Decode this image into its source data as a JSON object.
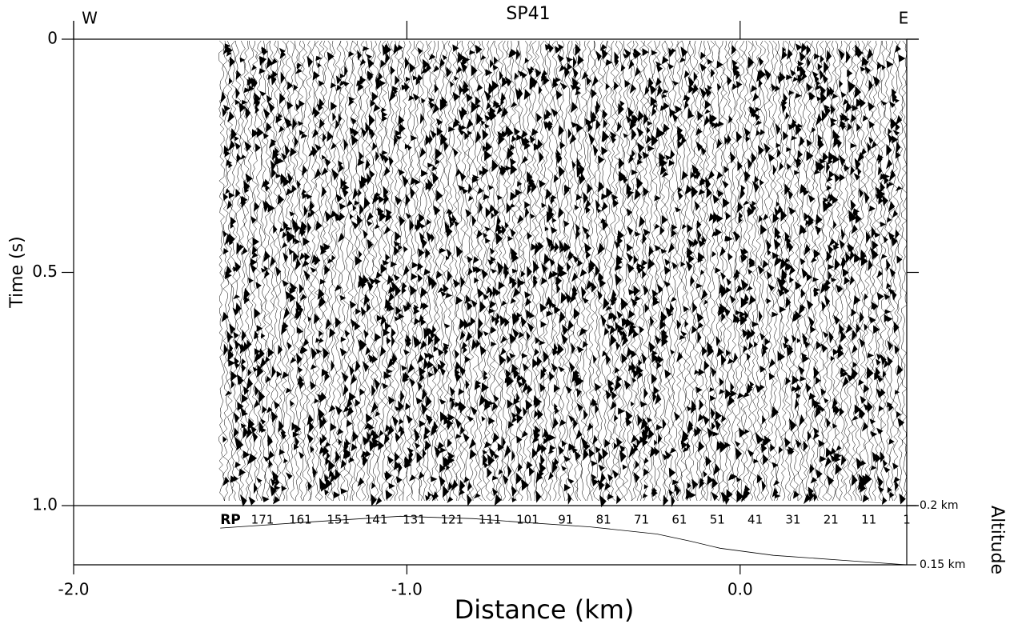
{
  "chart_data": {
    "type": "seismic-section",
    "title": "SP41",
    "x_label": "Distance (km)",
    "y_label": "Time (s)",
    "y2_label": "Altitude",
    "left_label": "W",
    "right_label": "E",
    "rp_label": "RP",
    "rp_numbers": [
      171,
      161,
      151,
      141,
      131,
      121,
      111,
      101,
      91,
      81,
      71,
      61,
      51,
      41,
      31,
      21,
      11,
      1
    ],
    "xlim": [
      -2.0,
      0.5
    ],
    "xticks": [
      {
        "value": -2,
        "label": "-2.0"
      },
      {
        "value": -1,
        "label": "-1.0"
      },
      {
        "value": 0,
        "label": "0.0"
      }
    ],
    "ylim": [
      0,
      1.0
    ],
    "yticks": [
      0,
      0.5,
      {
        "value": 1,
        "label": "1.0"
      }
    ],
    "y2lim": [
      0.15,
      0.2
    ],
    "y2ticks": [
      {
        "value": 0.2,
        "label": "0.2 km"
      },
      {
        "value": 0.15,
        "label": "0.15 km"
      }
    ],
    "altitude": {
      "x": [
        -1.56,
        -1.3,
        -1.02,
        -0.8,
        -0.66,
        -0.45,
        -0.25,
        -0.15,
        -0.06,
        0.1,
        0.3,
        0.5
      ],
      "values": [
        0.181,
        0.186,
        0.191,
        0.189,
        0.186,
        0.182,
        0.176,
        0.17,
        0.164,
        0.158,
        0.154,
        0.15
      ]
    }
  }
}
